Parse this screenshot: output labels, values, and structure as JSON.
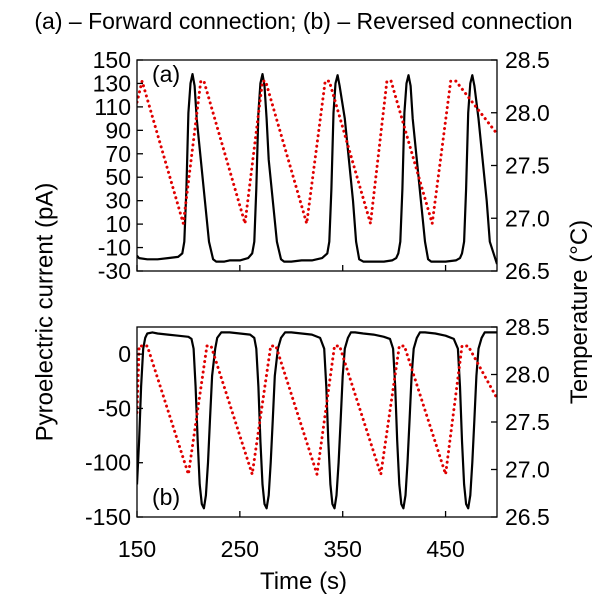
{
  "figure_title": "(a) – Forward connection; (b) – Reversed connection",
  "xlabel": "Time (s)",
  "ylabel_left": "Pyroelectric current (pA)",
  "ylabel_right": "Temperature (°C)",
  "colors": {
    "current": "#000000",
    "temperature": "#e00000"
  },
  "chart_data": [
    {
      "type": "line",
      "panel_label": "(a)",
      "xlim": [
        150,
        500
      ],
      "xticks": [
        150,
        250,
        350,
        450
      ],
      "ylim_left": [
        -30,
        150
      ],
      "yticks_left": [
        -30,
        -10,
        10,
        30,
        50,
        70,
        90,
        110,
        130,
        150
      ],
      "ylim_right": [
        26.5,
        28.5
      ],
      "yticks_right": [
        "26.5",
        "27.0",
        "27.5",
        "28.0",
        "28.5"
      ],
      "series": [
        {
          "axis": "left",
          "style": "solid",
          "x": [
            150,
            152,
            160,
            170,
            180,
            190,
            194,
            196,
            198,
            200,
            202,
            204,
            206,
            208,
            212,
            216,
            220,
            224,
            227,
            230,
            235,
            240,
            250,
            258,
            262,
            264,
            266,
            268,
            270,
            272,
            274,
            276,
            278,
            282,
            286,
            290,
            293,
            296,
            300,
            310,
            320,
            330,
            335,
            337,
            339,
            341,
            343,
            345,
            347,
            352,
            356,
            360,
            363,
            366,
            370,
            380,
            390,
            398,
            402,
            404,
            406,
            408,
            410,
            412,
            414,
            416,
            418,
            422,
            426,
            430,
            433,
            436,
            440,
            450,
            460,
            464,
            466,
            468,
            470,
            472,
            474,
            476,
            478,
            482,
            486,
            490,
            493,
            500
          ],
          "y": [
            -17,
            -19,
            -20,
            -20,
            -19,
            -18,
            -15,
            -5,
            40,
            105,
            130,
            138,
            128,
            100,
            65,
            30,
            -5,
            -20,
            -22,
            -22,
            -22,
            -21,
            -21,
            -19,
            -15,
            -5,
            40,
            105,
            130,
            138,
            128,
            100,
            65,
            30,
            -5,
            -20,
            -22,
            -22,
            -22,
            -21,
            -21,
            -19,
            -15,
            -5,
            40,
            105,
            130,
            137,
            128,
            100,
            65,
            30,
            -5,
            -20,
            -22,
            -22,
            -22,
            -21,
            -19,
            -15,
            -5,
            40,
            105,
            130,
            137,
            128,
            100,
            65,
            30,
            -5,
            -20,
            -22,
            -22,
            -22,
            -21,
            -19,
            -15,
            -5,
            40,
            105,
            130,
            137,
            128,
            100,
            65,
            30,
            -5,
            -24
          ]
        },
        {
          "axis": "right",
          "style": "dotted",
          "x": [
            150,
            155,
            195,
            212,
            215,
            255,
            272,
            275,
            315,
            333,
            337,
            377,
            393,
            397,
            437,
            455,
            460,
            500
          ],
          "y": [
            28.1,
            28.3,
            26.95,
            28.3,
            28.3,
            26.95,
            28.3,
            28.3,
            26.95,
            28.3,
            28.3,
            26.95,
            28.3,
            28.3,
            26.95,
            28.3,
            28.3,
            27.8
          ]
        }
      ]
    },
    {
      "type": "line",
      "panel_label": "(b)",
      "xlim": [
        150,
        500
      ],
      "xticks": [
        150,
        250,
        350,
        450
      ],
      "ylim_left": [
        -150,
        25
      ],
      "yticks_left": [
        -150,
        -100,
        -50,
        0
      ],
      "ylim_right": [
        26.5,
        28.5
      ],
      "yticks_right": [
        "26.5",
        "27.0",
        "27.5",
        "28.0",
        "28.5"
      ],
      "series": [
        {
          "axis": "left",
          "style": "solid",
          "x": [
            150,
            152,
            154,
            156,
            158,
            160,
            165,
            170,
            180,
            190,
            200,
            203,
            205,
            207,
            209,
            211,
            213,
            215,
            217,
            219,
            221,
            223,
            226,
            228,
            232,
            240,
            250,
            260,
            264,
            266,
            268,
            270,
            272,
            274,
            276,
            278,
            280,
            282,
            284,
            287,
            290,
            294,
            300,
            310,
            320,
            328,
            332,
            334,
            336,
            338,
            340,
            342,
            344,
            346,
            348,
            350,
            352,
            355,
            358,
            362,
            370,
            380,
            390,
            396,
            399,
            401,
            403,
            405,
            407,
            409,
            411,
            413,
            415,
            417,
            419,
            422,
            425,
            430,
            440,
            450,
            458,
            462,
            464,
            466,
            468,
            470,
            472,
            474,
            476,
            478,
            480,
            482,
            485,
            488,
            492,
            500
          ],
          "y": [
            -120,
            -80,
            -30,
            5,
            15,
            19,
            20,
            19,
            18,
            17,
            16,
            14,
            5,
            -30,
            -80,
            -120,
            -138,
            -142,
            -130,
            -100,
            -60,
            -20,
            5,
            15,
            20,
            20,
            19,
            18,
            15,
            5,
            -30,
            -80,
            -120,
            -138,
            -142,
            -130,
            -100,
            -60,
            -20,
            5,
            15,
            20,
            20,
            19,
            18,
            15,
            5,
            -30,
            -80,
            -120,
            -138,
            -142,
            -130,
            -100,
            -60,
            -20,
            5,
            15,
            20,
            20,
            19,
            18,
            16,
            14,
            5,
            -30,
            -80,
            -120,
            -138,
            -142,
            -130,
            -100,
            -60,
            -20,
            5,
            15,
            20,
            20,
            19,
            17,
            14,
            5,
            -30,
            -80,
            -120,
            -138,
            -142,
            -130,
            -100,
            -60,
            -20,
            5,
            15,
            20,
            20,
            20
          ]
        },
        {
          "axis": "right",
          "style": "dotted",
          "x": [
            150,
            152,
            160,
            200,
            218,
            222,
            262,
            280,
            285,
            325,
            342,
            347,
            387,
            405,
            410,
            450,
            466,
            472,
            500
          ],
          "y": [
            27.6,
            28.3,
            28.3,
            26.95,
            28.3,
            28.3,
            26.95,
            28.3,
            28.3,
            26.95,
            28.3,
            28.3,
            26.95,
            28.3,
            28.3,
            26.95,
            28.3,
            28.3,
            27.75
          ]
        }
      ]
    }
  ]
}
